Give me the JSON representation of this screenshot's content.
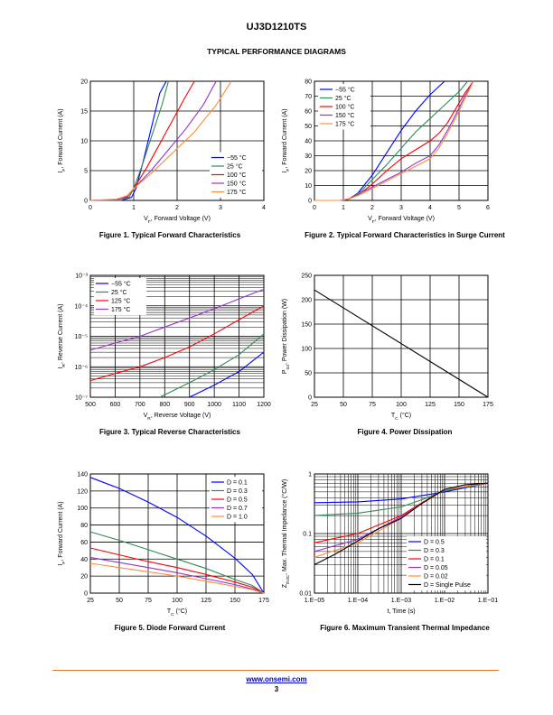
{
  "header": {
    "title": "UJ3D1210TS",
    "section": "TYPICAL PERFORMANCE DIAGRAMS"
  },
  "footer": {
    "url": "www.onsemi.com",
    "page": "3"
  },
  "captions": [
    "Figure 1. Typical Forward Characteristics",
    "Figure 2. Typical Forward Characteristics in Surge Current",
    "Figure 3. Typical Reverse Characteristics",
    "Figure 4. Power Dissipation",
    "Figure 5. Diode Forward Current",
    "Figure 6. Maximum Transient Thermal Impedance"
  ],
  "chart_data": [
    {
      "type": "line",
      "xlabel": "V_F, Forward Voltage (V)",
      "ylabel": "I_F, Forward Current (A)",
      "xlim": [
        0,
        4
      ],
      "ylim": [
        0,
        20
      ],
      "xticks": [
        0,
        1,
        2,
        3,
        4
      ],
      "yticks": [
        0,
        5,
        10,
        15,
        20
      ],
      "grid": true,
      "legend": "bottom-right",
      "series": [
        {
          "name": "−55 °C",
          "color": "#0000ff",
          "x": [
            0,
            0.7,
            0.95,
            1.05,
            1.2,
            1.4,
            1.6,
            1.75
          ],
          "y": [
            0,
            0.02,
            0.5,
            2,
            6,
            12,
            18,
            20
          ]
        },
        {
          "name": "25 °C",
          "color": "#2e8b57",
          "x": [
            0,
            0.7,
            0.9,
            1.0,
            1.2,
            1.4,
            1.65,
            1.8
          ],
          "y": [
            0,
            0.05,
            0.6,
            2,
            6,
            10.5,
            16,
            20
          ]
        },
        {
          "name": "100 °C",
          "color": "#ff0000",
          "x": [
            0,
            0.6,
            0.85,
            1.0,
            1.3,
            1.6,
            1.9,
            2.2,
            2.4
          ],
          "y": [
            0,
            0.1,
            0.6,
            2,
            5.5,
            9.5,
            13.5,
            17.5,
            20
          ]
        },
        {
          "name": "150 °C",
          "color": "#9932cc",
          "x": [
            0,
            0.6,
            0.85,
            1.0,
            1.4,
            1.8,
            2.2,
            2.6,
            2.9
          ],
          "y": [
            0,
            0.15,
            0.7,
            2,
            5,
            8.5,
            12,
            16,
            20
          ]
        },
        {
          "name": "175 °C",
          "color": "#ff8c3a",
          "x": [
            0,
            0.6,
            0.85,
            1.0,
            1.4,
            1.9,
            2.4,
            2.9,
            3.25
          ],
          "y": [
            0,
            0.2,
            0.8,
            2,
            4.5,
            8,
            11.5,
            16,
            20
          ]
        }
      ]
    },
    {
      "type": "line",
      "xlabel": "V_F, Forward Voltage (V)",
      "ylabel": "I_F, Forward Current (A)",
      "xlim": [
        0,
        6
      ],
      "ylim": [
        0,
        80
      ],
      "xticks": [
        0,
        1,
        2,
        3,
        4,
        5,
        6
      ],
      "yticks": [
        0,
        10,
        20,
        30,
        40,
        50,
        60,
        70,
        80
      ],
      "grid": true,
      "legend": "top-left",
      "series": [
        {
          "name": "−55 °C",
          "color": "#0000ff",
          "x": [
            0,
            0.9,
            1.2,
            1.5,
            2,
            2.5,
            3,
            3.5,
            4,
            4.5
          ],
          "y": [
            0,
            0,
            1,
            5,
            17,
            32,
            47,
            60,
            71,
            80
          ]
        },
        {
          "name": "25 °C",
          "color": "#2e8b57",
          "x": [
            0,
            0.9,
            1.2,
            1.6,
            2,
            2.5,
            3,
            3.5,
            4,
            4.5,
            5,
            5.3
          ],
          "y": [
            0,
            0,
            1,
            6,
            14,
            24,
            35,
            46,
            55,
            64,
            73,
            80
          ]
        },
        {
          "name": "100 °C",
          "color": "#ff0000",
          "x": [
            0,
            0.9,
            1.2,
            1.6,
            2,
            2.5,
            3,
            3.5,
            4,
            4.3,
            4.6,
            4.9,
            5.2,
            5.5
          ],
          "y": [
            0,
            0,
            1,
            5,
            11,
            20,
            28,
            34,
            40,
            45,
            52,
            62,
            72,
            80
          ]
        },
        {
          "name": "150 °C",
          "color": "#9932cc",
          "x": [
            0,
            0.9,
            1.2,
            1.6,
            2,
            2.5,
            3,
            3.5,
            4,
            4.3,
            4.6,
            4.9,
            5.2,
            5.5
          ],
          "y": [
            0,
            0,
            1,
            5,
            9,
            14,
            19,
            25,
            30,
            37,
            47,
            58,
            70,
            80
          ]
        },
        {
          "name": "175 °C",
          "color": "#ff8c3a",
          "x": [
            0,
            0.9,
            1.2,
            1.6,
            2,
            2.5,
            3,
            3.5,
            4,
            4.3,
            4.6,
            4.9,
            5.2,
            5.5
          ],
          "y": [
            0,
            0,
            1,
            4,
            8,
            13,
            18,
            23,
            28,
            35,
            45,
            56,
            68,
            80
          ]
        }
      ]
    },
    {
      "type": "line",
      "scale_y": "log",
      "xlabel": "V_R, Reverse Voltage (V)",
      "ylabel": "I_R, Reverse Current (A)",
      "xlim": [
        500,
        1200
      ],
      "ylim": [
        1e-07,
        0.001
      ],
      "xticks": [
        500,
        600,
        700,
        800,
        900,
        1000,
        1100,
        1200
      ],
      "ytick_labels": [
        "10⁻⁷",
        "10⁻⁶",
        "10⁻⁵",
        "10⁻⁴",
        "10⁻³"
      ],
      "grid": true,
      "legend": "top-left",
      "series": [
        {
          "name": "−55 °C",
          "color": "#0000ff",
          "x": [
            900,
            1000,
            1100,
            1200
          ],
          "y": [
            1e-07,
            2.5e-07,
            7e-07,
            3e-06
          ]
        },
        {
          "name": "25 °C",
          "color": "#2e8b57",
          "x": [
            780,
            900,
            1000,
            1100,
            1200
          ],
          "y": [
            1e-07,
            3e-07,
            8e-07,
            2.5e-06,
            1.2e-05
          ]
        },
        {
          "name": "125 °C",
          "color": "#ff0000",
          "x": [
            500,
            600,
            700,
            800,
            900,
            1000,
            1100,
            1200
          ],
          "y": [
            3.5e-07,
            6e-07,
            1e-06,
            2e-06,
            4.5e-06,
            1.2e-05,
            3.5e-05,
            0.0001
          ]
        },
        {
          "name": "175 °C",
          "color": "#9932cc",
          "x": [
            500,
            600,
            700,
            800,
            900,
            1000,
            1100,
            1200
          ],
          "y": [
            3.5e-06,
            6e-06,
            1e-05,
            2e-05,
            4e-05,
            8e-05,
            0.00017,
            0.00035
          ]
        }
      ]
    },
    {
      "type": "line",
      "xlabel": "T_C (°C)",
      "ylabel": "P_tot, Power Dissipation (W)",
      "xlim": [
        25,
        175
      ],
      "ylim": [
        0,
        250
      ],
      "xticks": [
        25,
        50,
        75,
        100,
        125,
        150,
        175
      ],
      "yticks": [
        0,
        50,
        100,
        150,
        200,
        250
      ],
      "grid": true,
      "series": [
        {
          "color": "#000000",
          "x": [
            25,
            175
          ],
          "y": [
            220,
            0
          ]
        }
      ]
    },
    {
      "type": "line",
      "xlabel": "T_C (°C)",
      "ylabel": "I_F, Forward Current (A)",
      "xlim": [
        25,
        175
      ],
      "ylim": [
        0,
        140
      ],
      "xticks": [
        25,
        50,
        75,
        100,
        125,
        150,
        175
      ],
      "yticks": [
        0,
        20,
        40,
        60,
        80,
        100,
        120,
        140
      ],
      "grid": true,
      "legend": "top-right",
      "series": [
        {
          "name": "D = 0.1",
          "color": "#0000ff",
          "x": [
            25,
            50,
            75,
            100,
            125,
            150,
            165,
            175
          ],
          "y": [
            136,
            123,
            107,
            89,
            67,
            41,
            22,
            0
          ]
        },
        {
          "name": "D = 0.3",
          "color": "#2e8b57",
          "x": [
            25,
            50,
            75,
            100,
            125,
            150,
            165,
            175
          ],
          "y": [
            72,
            62,
            51,
            40,
            29,
            16,
            9,
            0
          ]
        },
        {
          "name": "D = 0.5",
          "color": "#ff0000",
          "x": [
            25,
            50,
            75,
            100,
            125,
            150,
            165,
            175
          ],
          "y": [
            53,
            45,
            37,
            30,
            22,
            13,
            7,
            0
          ]
        },
        {
          "name": "D = 0.7",
          "color": "#9932cc",
          "x": [
            25,
            50,
            75,
            100,
            125,
            150,
            165,
            175
          ],
          "y": [
            42,
            36,
            30,
            24,
            17,
            10,
            5,
            0
          ]
        },
        {
          "name": "D = 1.0",
          "color": "#ff8c3a",
          "x": [
            25,
            50,
            75,
            100,
            125,
            150,
            165,
            175
          ],
          "y": [
            35,
            30,
            25,
            20,
            14,
            8,
            4,
            0
          ]
        }
      ]
    },
    {
      "type": "line",
      "scale_x": "log",
      "scale_y": "log",
      "xlabel": "t, Time (s)",
      "ylabel": "Z_thJC, Max. Thermal Impedance (°C/W)",
      "xlim": [
        1e-05,
        0.1
      ],
      "ylim": [
        0.01,
        1
      ],
      "xtick_labels": [
        "1.E−05",
        "1.E−04",
        "1.E−03",
        "1.E−02",
        "1.E−01"
      ],
      "ytick_labels": [
        "0.01",
        "0.1",
        "1"
      ],
      "grid": true,
      "legend": "bottom-right",
      "series": [
        {
          "name": "D = 0.5",
          "color": "#0000ff",
          "x": [
            1e-05,
            0.0001,
            0.001,
            0.01,
            0.1
          ],
          "y": [
            0.33,
            0.34,
            0.38,
            0.5,
            0.7
          ]
        },
        {
          "name": "D = 0.3",
          "color": "#2e8b57",
          "x": [
            1e-05,
            0.0001,
            0.001,
            0.003,
            0.01,
            0.1
          ],
          "y": [
            0.2,
            0.22,
            0.28,
            0.37,
            0.52,
            0.7
          ]
        },
        {
          "name": "D = 0.1",
          "color": "#ff0000",
          "x": [
            1e-05,
            0.0001,
            0.001,
            0.003,
            0.01,
            0.1
          ],
          "y": [
            0.07,
            0.1,
            0.2,
            0.33,
            0.55,
            0.7
          ]
        },
        {
          "name": "D = 0.05",
          "color": "#9932cc",
          "x": [
            1e-05,
            0.0001,
            0.001,
            0.003,
            0.01,
            0.1
          ],
          "y": [
            0.05,
            0.08,
            0.19,
            0.32,
            0.55,
            0.7
          ]
        },
        {
          "name": "D = 0.02",
          "color": "#ff8c3a",
          "x": [
            1e-05,
            0.0001,
            0.001,
            0.003,
            0.01,
            0.1
          ],
          "y": [
            0.04,
            0.07,
            0.18,
            0.32,
            0.55,
            0.7
          ]
        },
        {
          "name": "D = Single Pulse",
          "color": "#000000",
          "x": [
            1e-05,
            3e-05,
            0.0001,
            0.0003,
            0.001,
            0.003,
            0.01,
            0.03,
            0.1
          ],
          "y": [
            0.03,
            0.045,
            0.075,
            0.12,
            0.18,
            0.32,
            0.55,
            0.66,
            0.7
          ]
        }
      ]
    }
  ]
}
